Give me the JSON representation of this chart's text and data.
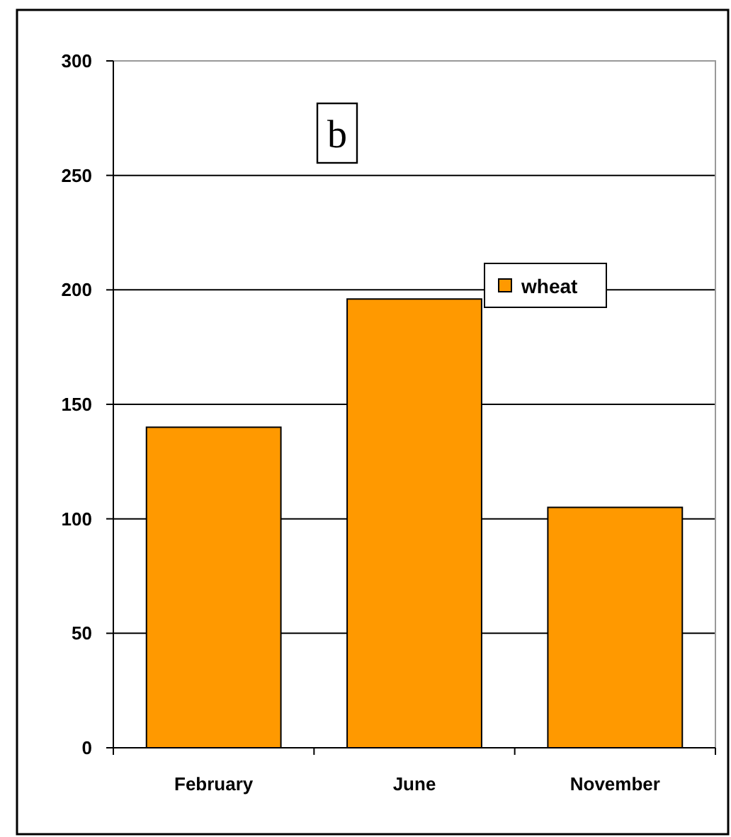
{
  "chart_data": {
    "type": "bar",
    "categories": [
      "February",
      "June",
      "November"
    ],
    "series": [
      {
        "name": "wheat",
        "color": "#ff9900",
        "values": [
          140,
          196,
          105
        ]
      }
    ],
    "ylim": [
      0,
      300
    ],
    "yticks": [
      0,
      50,
      100,
      150,
      200,
      250,
      300
    ],
    "grid": "y",
    "legend": "top right",
    "annotations": [
      "b"
    ]
  }
}
